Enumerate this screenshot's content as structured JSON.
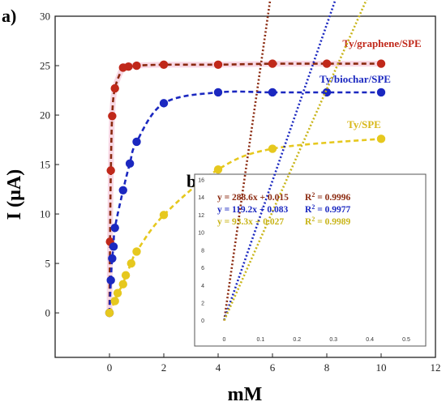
{
  "main_label": "a)",
  "inset_label": "b)",
  "chart_data": [
    {
      "type": "scatter",
      "xlabel": "mM",
      "ylabel": "I (µA)",
      "xlim": [
        -2,
        12
      ],
      "ylim": [
        -4.5,
        30
      ],
      "xticks": [
        "0",
        "2",
        "4",
        "6",
        "8",
        "10",
        "12"
      ],
      "yticks": [
        "0",
        "5",
        "10",
        "15",
        "20",
        "25",
        "30"
      ],
      "grid": false,
      "legend": "inline labels next to curves",
      "series": [
        {
          "name": "Ty/graphene/SPE",
          "color": "#c0281a",
          "line_color": "#8b2a10",
          "x": [
            0.0,
            0.02,
            0.05,
            0.1,
            0.2,
            0.5,
            0.7,
            1.0,
            2.0,
            4.0,
            6.0,
            8.0,
            10.0
          ],
          "y": [
            0.0,
            7.2,
            14.4,
            19.9,
            22.7,
            24.8,
            24.9,
            25.0,
            25.1,
            25.1,
            25.2,
            25.2,
            25.2
          ]
        },
        {
          "name": "Ty/biochar/SPE",
          "color": "#1b28c0",
          "line_color": "#1b28c0",
          "x": [
            0.0,
            0.05,
            0.1,
            0.15,
            0.2,
            0.5,
            0.75,
            1.0,
            2.0,
            4.0,
            6.0,
            8.0,
            10.0
          ],
          "y": [
            0.0,
            3.3,
            5.5,
            6.7,
            8.6,
            12.4,
            15.1,
            17.3,
            21.2,
            22.3,
            22.3,
            22.3,
            22.3
          ]
        },
        {
          "name": "Ty/SPE",
          "color": "#e6c81e",
          "line_color": "#e6c81e",
          "x": [
            0.0,
            0.2,
            0.3,
            0.5,
            0.6,
            0.8,
            1.0,
            2.0,
            4.0,
            6.0,
            10.0
          ],
          "y": [
            0.0,
            1.2,
            2.0,
            2.9,
            3.8,
            5.0,
            6.2,
            9.9,
            14.5,
            16.6,
            17.6
          ]
        }
      ]
    },
    {
      "type": "line",
      "xlim": [
        -0.05,
        0.52
      ],
      "ylim": [
        -1.5,
        16
      ],
      "xticks": [
        "0",
        "0.1",
        "0.2",
        "0.3",
        "0.4",
        "0.5"
      ],
      "yticks": [
        "0",
        "2",
        "4",
        "6",
        "8",
        "10",
        "12",
        "14",
        "16"
      ],
      "series": [
        {
          "equation": "y = 288.6x + 0.015",
          "r2_label": "R",
          "r2_sup": "2",
          "r2_value": " = 0.9996",
          "slope": 288.6,
          "intercept": 0.015,
          "color": "#8b2a10"
        },
        {
          "equation": "y = 119.2x + 0.083",
          "r2_label": "R",
          "r2_sup": "2",
          "r2_value": " = 0.9977",
          "slope": 119.2,
          "intercept": 0.083,
          "color": "#1b28c0"
        },
        {
          "equation": "y = 93.3x + 0.027",
          "r2_label": "R",
          "r2_sup": "2",
          "r2_value": " = 0.9989",
          "slope": 93.3,
          "intercept": 0.027,
          "color": "#c8b418"
        }
      ]
    }
  ]
}
